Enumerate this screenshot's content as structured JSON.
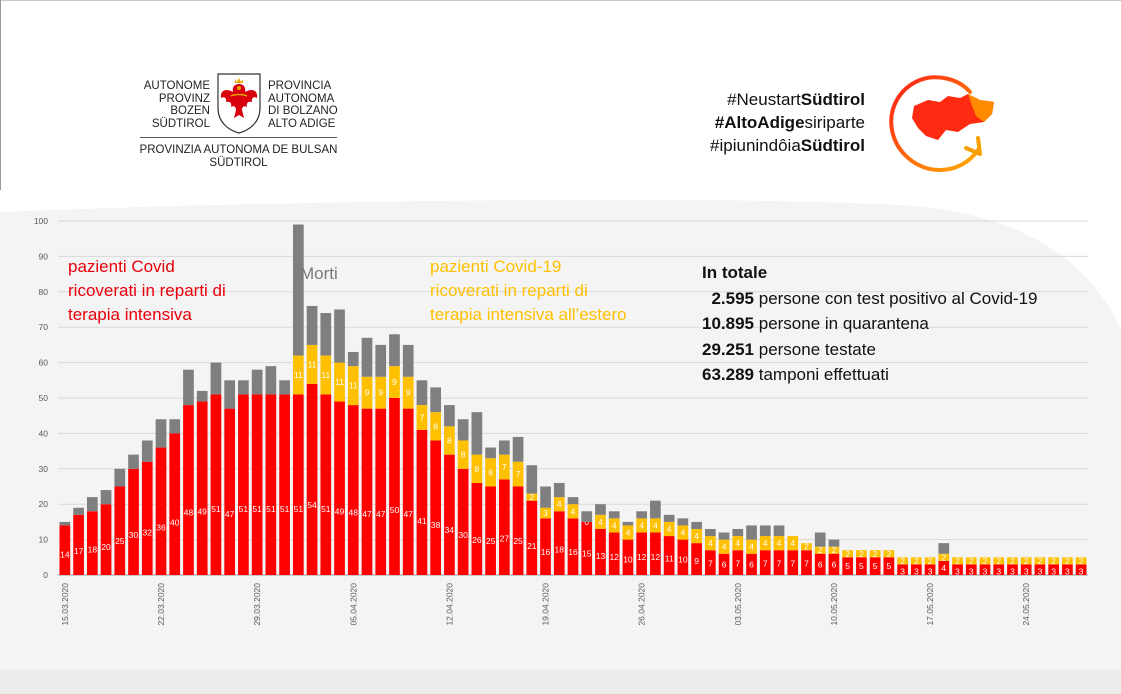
{
  "header": {
    "province_left": [
      "AUTONOME",
      "PROVINZ",
      "BOZEN",
      "SÜDTIROL"
    ],
    "province_right": [
      "PROVINCIA",
      "AUTONOMA",
      "DI BOLZANO",
      "ALTO ADIGE"
    ],
    "province_bottom": [
      "PROVINZIA AUTONOMA DE BULSAN",
      "SÜDTIROL"
    ],
    "coat_of_arms_icon": "eagle-coat-of-arms-icon",
    "hashtags": [
      {
        "plain": "#Neustart",
        "bold": "Südtirol",
        "order": "plain-bold"
      },
      {
        "plain": "siriparte",
        "bold": "#AltoAdige",
        "order": "bold-plain"
      },
      {
        "plain": "#ipiunindôia",
        "bold": "Südtirol",
        "order": "plain-bold"
      }
    ],
    "restart_logo_icon": "south-tyrol-restart-logo-icon"
  },
  "legend": {
    "red": [
      "pazienti Covid",
      "ricoverati in reparti di",
      "terapia intensiva"
    ],
    "grey": "Morti",
    "yellow": [
      "pazienti Covid-19",
      "ricoverati in reparti di",
      "terapia intensiva all’estero"
    ]
  },
  "totals": {
    "title": "In totale",
    "rows": [
      {
        "value": "2.595",
        "label": "persone con test positivo al Covid-19"
      },
      {
        "value": "10.895",
        "label": "persone in quarantena"
      },
      {
        "value": "29.251",
        "label": "persone testate"
      },
      {
        "value": "63.289",
        "label": "tamponi effettuati"
      }
    ]
  },
  "colors": {
    "red": "#ff0000",
    "yellow": "#ffc000",
    "grey": "#7f7f7f",
    "text_red": "#e8000b"
  },
  "chart_data": {
    "type": "bar",
    "stacked": true,
    "ylim": [
      0,
      100
    ],
    "yticks": [
      0,
      10,
      20,
      30,
      40,
      50,
      60,
      70,
      80,
      90,
      100
    ],
    "grid": true,
    "x_tick_labels": [
      {
        "index": 0,
        "label": "15.03.2020"
      },
      {
        "index": 7,
        "label": "22.03.2020"
      },
      {
        "index": 14,
        "label": "29.03.2020"
      },
      {
        "index": 21,
        "label": "05.04.2020"
      },
      {
        "index": 28,
        "label": "12.04.2020"
      },
      {
        "index": 35,
        "label": "19.04.2020"
      },
      {
        "index": 42,
        "label": "26.04.2020"
      },
      {
        "index": 49,
        "label": "03.05.2020"
      },
      {
        "index": 56,
        "label": "10.05.2020"
      },
      {
        "index": 63,
        "label": "17.05.2020"
      },
      {
        "index": 70,
        "label": "24.05.2020"
      }
    ],
    "series": [
      {
        "name": "pazienti Covid ricoverati in reparti di terapia intensiva",
        "color": "#ff0000",
        "values": [
          14,
          17,
          18,
          20,
          25,
          30,
          32,
          36,
          40,
          48,
          49,
          51,
          47,
          51,
          51,
          51,
          51,
          51,
          54,
          51,
          49,
          48,
          47,
          47,
          50,
          47,
          41,
          38,
          34,
          30,
          26,
          25,
          27,
          25,
          21,
          16,
          18,
          16,
          15,
          13,
          12,
          10,
          12,
          12,
          11,
          10,
          9,
          7,
          6,
          7,
          6,
          7,
          7,
          7,
          7,
          6,
          6,
          5,
          5,
          5,
          5,
          3,
          3,
          3,
          4,
          3,
          3,
          3,
          3,
          3,
          3,
          3,
          3,
          3,
          3
        ],
        "labels": [
          "14",
          "17",
          "18",
          "20",
          "25",
          "30",
          "32",
          "36",
          "40",
          "48",
          "49",
          "51",
          "47",
          "51",
          "51",
          "51",
          "51",
          "51",
          "54",
          "51",
          "49",
          "48",
          "47",
          "47",
          "50",
          "47",
          "41",
          "38",
          "34",
          "30",
          "26",
          "25",
          "27",
          "25",
          "21",
          "16",
          "18",
          "16",
          "15",
          "13",
          "12",
          "10",
          "12",
          "12",
          "11",
          "10",
          "9",
          "7",
          "6",
          "7",
          "6",
          "7",
          "7",
          "7",
          "7",
          "6",
          "6",
          "5",
          "5",
          "5",
          "5",
          "3",
          "3",
          "3",
          "4",
          "3",
          "3",
          "3",
          "3",
          "3",
          "3",
          "3",
          "3",
          "3",
          "3"
        ]
      },
      {
        "name": "pazienti Covid-19 ricoverati in reparti di terapia intensiva all’estero",
        "color": "#ffc000",
        "values": [
          0,
          0,
          0,
          0,
          0,
          0,
          0,
          0,
          0,
          0,
          0,
          0,
          0,
          0,
          0,
          0,
          0,
          11,
          11,
          11,
          11,
          11,
          9,
          9,
          9,
          9,
          7,
          8,
          8,
          8,
          8,
          8,
          7,
          7,
          2,
          3,
          4,
          4,
          0,
          4,
          4,
          4,
          4,
          4,
          4,
          4,
          4,
          4,
          4,
          4,
          4,
          4,
          4,
          4,
          2,
          2,
          2,
          2,
          2,
          2,
          2,
          2,
          2,
          2,
          2,
          2,
          2,
          2,
          2,
          2,
          2,
          2,
          2,
          2,
          2
        ],
        "labels": [
          "",
          "",
          "",
          "",
          "",
          "",
          "",
          "",
          "",
          "",
          "",
          "",
          "",
          "",
          "",
          "",
          "",
          "11",
          "11",
          "11",
          "11",
          "11",
          "9",
          "9",
          "9",
          "9",
          "7",
          "8",
          "8",
          "8",
          "8",
          "8",
          "7",
          "7",
          "2",
          "3",
          "4",
          "4",
          "0",
          "4",
          "4",
          "4",
          "4",
          "4",
          "4",
          "4",
          "4",
          "4",
          "4",
          "4",
          "4",
          "4",
          "4",
          "4",
          "2",
          "2",
          "2",
          "2",
          "2",
          "2",
          "2",
          "2",
          "2",
          "2",
          "2",
          "2",
          "2",
          "2",
          "2",
          "2",
          "2",
          "2",
          "2",
          "2",
          "2"
        ]
      },
      {
        "name": "Morti",
        "color": "#7f7f7f",
        "values": [
          1,
          2,
          4,
          4,
          5,
          4,
          6,
          8,
          4,
          10,
          3,
          9,
          8,
          4,
          7,
          8,
          4,
          37,
          11,
          12,
          15,
          4,
          11,
          9,
          9,
          9,
          7,
          7,
          6,
          6,
          12,
          3,
          4,
          7,
          8,
          6,
          4,
          2,
          3,
          3,
          2,
          1,
          2,
          5,
          2,
          2,
          2,
          2,
          2,
          2,
          4,
          3,
          3,
          0,
          0,
          4,
          2,
          0,
          0,
          0,
          0,
          0,
          0,
          0,
          3,
          0,
          0,
          0,
          0,
          0,
          0,
          0,
          0,
          0,
          0
        ]
      }
    ]
  }
}
